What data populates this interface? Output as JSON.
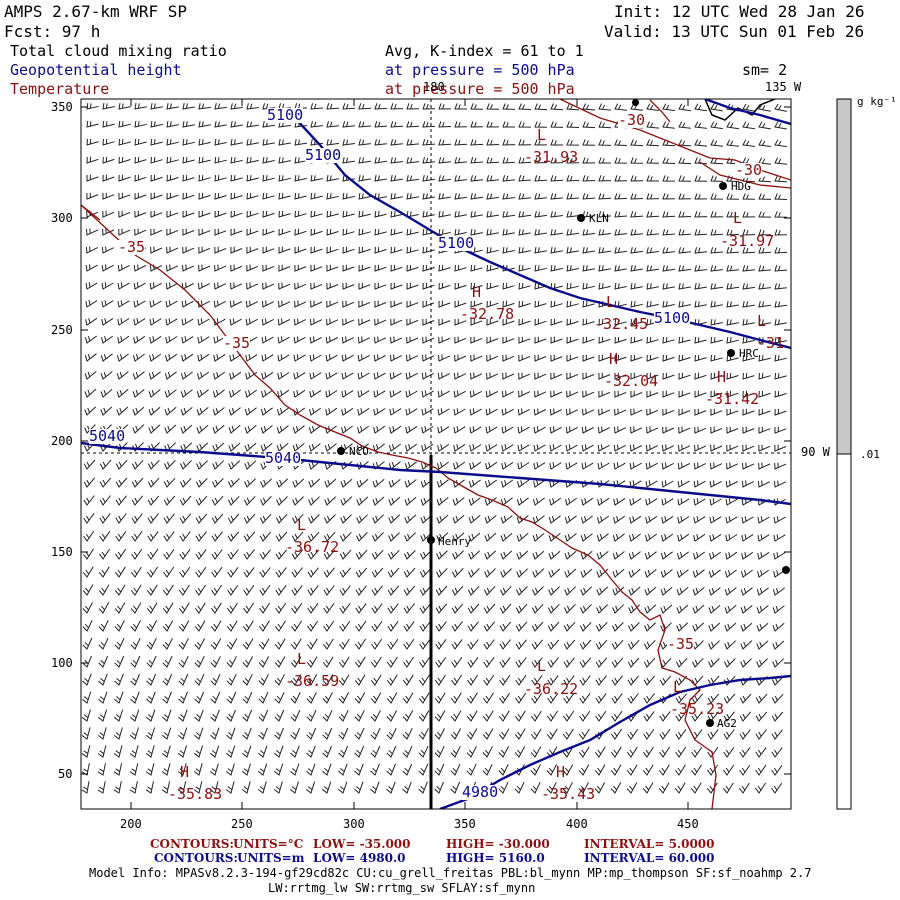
{
  "header": {
    "model": "AMPS 2.67-km WRF SP",
    "forecast": "Fcst:    97 h",
    "init": "Init: 12 UTC Wed 28 Jan 26",
    "valid": "Valid: 13 UTC Sun 01 Feb 26",
    "field1": "Total cloud mixing ratio",
    "field2": "Geopotential height",
    "field3": "Temperature",
    "avg": "Avg, K-index =  61 to   1",
    "pressure1": "at pressure =  500 hPa",
    "pressure2": "at pressure =  500 hPa",
    "sm": "sm= 2"
  },
  "map_labels": {
    "lon180": "180",
    "lon135": "135 W",
    "lon90": "90 W"
  },
  "colorbar": {
    "unit": "g kg⁻¹",
    "value": ".01",
    "colors": {
      "upper": "#c8c8c8",
      "lower": "#ffffff"
    }
  },
  "axes": {
    "x_ticks": [
      "200",
      "250",
      "300",
      "350",
      "400",
      "450"
    ],
    "y_ticks": [
      "350",
      "300",
      "250",
      "200",
      "150",
      "100",
      "50"
    ]
  },
  "stations": [
    {
      "name": "KLN"
    },
    {
      "name": "HDG"
    },
    {
      "name": "HRC"
    },
    {
      "name": "NCO"
    },
    {
      "name": "Henry"
    },
    {
      "name": "AG2"
    }
  ],
  "height_contours": [
    {
      "label": "5100"
    },
    {
      "label": "5100"
    },
    {
      "label": "5100"
    },
    {
      "label": "5100"
    },
    {
      "label": "5040"
    },
    {
      "label": "5040"
    },
    {
      "label": "4980"
    }
  ],
  "temp_contours": [
    {
      "label": "-35"
    },
    {
      "label": "-35"
    },
    {
      "label": "-35"
    },
    {
      "label": "-30"
    },
    {
      "label": "-30"
    }
  ],
  "extrema": [
    {
      "type": "L",
      "value": "-31.93"
    },
    {
      "type": "L",
      "value": "-31.97"
    },
    {
      "type": "H",
      "value": "-32.78"
    },
    {
      "type": "L",
      "value": "-32.45"
    },
    {
      "type": "L",
      "value": "-31"
    },
    {
      "type": "H",
      "value": "-32.04"
    },
    {
      "type": "H",
      "value": "-31.42"
    },
    {
      "type": "L",
      "value": "-36.72"
    },
    {
      "type": "L",
      "value": "-36.59"
    },
    {
      "type": "L",
      "value": "-36.22"
    },
    {
      "type": "L",
      "value": "-35.23"
    },
    {
      "type": "H",
      "value": "-35.83"
    },
    {
      "type": "H",
      "value": "-35.43"
    }
  ],
  "footer": {
    "c1_contours": "CONTOURS:",
    "c1_units": "UNITS=°C",
    "c1_low": "LOW= -35.000",
    "c1_high": "HIGH= -30.000",
    "c1_interval": "INTERVAL=    5.0000",
    "c2_contours": "CONTOURS:",
    "c2_units": "UNITS=m",
    "c2_low": "LOW=   4980.0",
    "c2_high": "HIGH=   5160.0",
    "c2_interval": "INTERVAL=    60.000",
    "model_info": "Model Info: MPASv8.2.3-194-gf29cd82c CU:cu_grell_freitas PBL:bl_mynn MP:mp_thompson SF:sf_noahmp 2.7",
    "model_info2": "LW:rrtmg_lw SW:rrtmg_sw SFLAY:sf_mynn"
  }
}
